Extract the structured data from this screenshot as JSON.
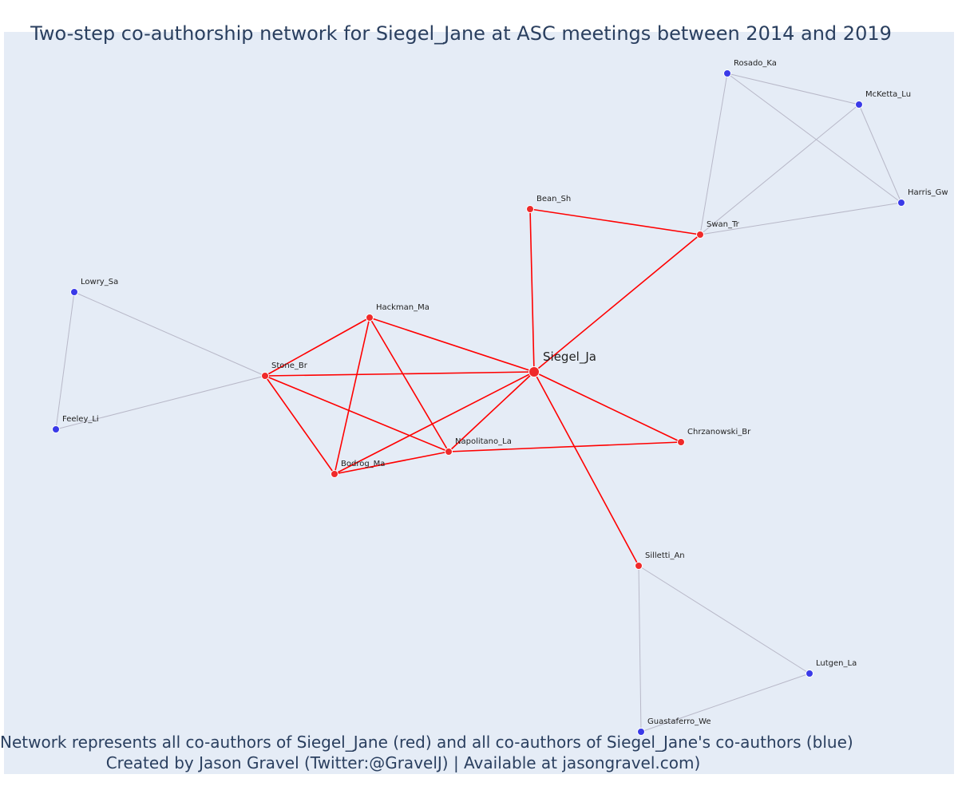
{
  "title": "Two-step co-authorship network for Siegel_Jane at ASC meetings between 2014 and 2019",
  "caption_line1": "Network represents all co-authors of Siegel_Jane (red) and all co-authors of Siegel_Jane's co-authors (blue)",
  "caption_line2": "Created by Jason Gravel (Twitter:@GravelJ) | Available at jasongravel.com)",
  "colors": {
    "plot_bg": "#e5ecf6",
    "direct": "#ff0000",
    "direct_node": "#ef2a2a",
    "indirect_edge": "#b8b8c8",
    "indirect_node": "#3a3ae8",
    "text": "#2a3f5f"
  },
  "chart_data": {
    "type": "network",
    "focal": "Siegel_Ja",
    "nodes": [
      {
        "id": "Siegel_Ja",
        "group": "focal"
      },
      {
        "id": "Bean_Sh",
        "group": "coauthor"
      },
      {
        "id": "Swan_Tr",
        "group": "coauthor"
      },
      {
        "id": "Hackman_Ma",
        "group": "coauthor"
      },
      {
        "id": "Stone_Br",
        "group": "coauthor"
      },
      {
        "id": "Napolitano_La",
        "group": "coauthor"
      },
      {
        "id": "Bodrog_Ma",
        "group": "coauthor"
      },
      {
        "id": "Chrzanowski_Br",
        "group": "coauthor"
      },
      {
        "id": "Silletti_An",
        "group": "coauthor"
      },
      {
        "id": "Rosado_Ka",
        "group": "second"
      },
      {
        "id": "McKetta_Lu",
        "group": "second"
      },
      {
        "id": "Harris_Gw",
        "group": "second"
      },
      {
        "id": "Lowry_Sa",
        "group": "second"
      },
      {
        "id": "Feeley_Li",
        "group": "second"
      },
      {
        "id": "Lutgen_La",
        "group": "second"
      },
      {
        "id": "Guastaferro_We",
        "group": "second"
      }
    ],
    "edges": [
      {
        "source": "Siegel_Ja",
        "target": "Bean_Sh",
        "type": "direct"
      },
      {
        "source": "Siegel_Ja",
        "target": "Swan_Tr",
        "type": "direct"
      },
      {
        "source": "Bean_Sh",
        "target": "Swan_Tr",
        "type": "direct"
      },
      {
        "source": "Siegel_Ja",
        "target": "Hackman_Ma",
        "type": "direct"
      },
      {
        "source": "Siegel_Ja",
        "target": "Stone_Br",
        "type": "direct"
      },
      {
        "source": "Siegel_Ja",
        "target": "Napolitano_La",
        "type": "direct"
      },
      {
        "source": "Siegel_Ja",
        "target": "Bodrog_Ma",
        "type": "direct"
      },
      {
        "source": "Siegel_Ja",
        "target": "Chrzanowski_Br",
        "type": "direct"
      },
      {
        "source": "Siegel_Ja",
        "target": "Silletti_An",
        "type": "direct"
      },
      {
        "source": "Hackman_Ma",
        "target": "Stone_Br",
        "type": "direct"
      },
      {
        "source": "Hackman_Ma",
        "target": "Bodrog_Ma",
        "type": "direct"
      },
      {
        "source": "Hackman_Ma",
        "target": "Napolitano_La",
        "type": "direct"
      },
      {
        "source": "Stone_Br",
        "target": "Bodrog_Ma",
        "type": "direct"
      },
      {
        "source": "Stone_Br",
        "target": "Napolitano_La",
        "type": "direct"
      },
      {
        "source": "Bodrog_Ma",
        "target": "Napolitano_La",
        "type": "direct"
      },
      {
        "source": "Napolitano_La",
        "target": "Chrzanowski_Br",
        "type": "direct"
      },
      {
        "source": "Swan_Tr",
        "target": "Rosado_Ka",
        "type": "indirect"
      },
      {
        "source": "Swan_Tr",
        "target": "McKetta_Lu",
        "type": "indirect"
      },
      {
        "source": "Swan_Tr",
        "target": "Harris_Gw",
        "type": "indirect"
      },
      {
        "source": "Rosado_Ka",
        "target": "McKetta_Lu",
        "type": "indirect"
      },
      {
        "source": "Rosado_Ka",
        "target": "Harris_Gw",
        "type": "indirect"
      },
      {
        "source": "McKetta_Lu",
        "target": "Harris_Gw",
        "type": "indirect"
      },
      {
        "source": "Stone_Br",
        "target": "Lowry_Sa",
        "type": "indirect"
      },
      {
        "source": "Stone_Br",
        "target": "Feeley_Li",
        "type": "indirect"
      },
      {
        "source": "Lowry_Sa",
        "target": "Feeley_Li",
        "type": "indirect"
      },
      {
        "source": "Silletti_An",
        "target": "Lutgen_La",
        "type": "indirect"
      },
      {
        "source": "Silletti_An",
        "target": "Guastaferro_We",
        "type": "indirect"
      },
      {
        "source": "Lutgen_La",
        "target": "Guastaferro_We",
        "type": "indirect"
      }
    ]
  }
}
